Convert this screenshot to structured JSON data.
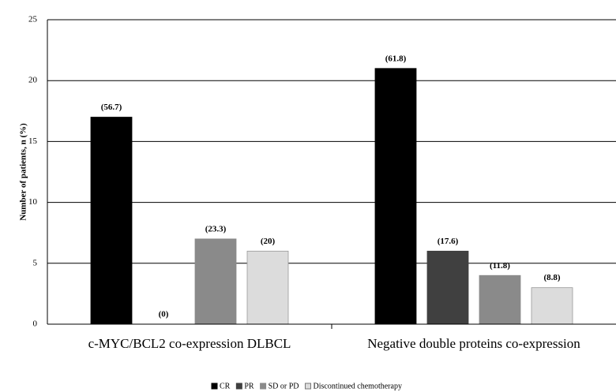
{
  "chart_data": {
    "type": "bar",
    "y_label": "Number of patients, n (%)",
    "categories": [
      "c-MYC/BCL2 co-expression DLBCL",
      "Negative double proteins co-expression"
    ],
    "series": [
      {
        "name": "CR",
        "color": "#000000",
        "values": [
          17,
          21
        ],
        "annotations": [
          "(56.7)",
          "(61.8)"
        ]
      },
      {
        "name": "PR",
        "color": "#404040",
        "values": [
          0,
          6
        ],
        "annotations": [
          "(0)",
          "(17.6)"
        ]
      },
      {
        "name": "SD or PD",
        "color": "#8a8a8a",
        "values": [
          7,
          4
        ],
        "annotations": [
          "(23.3)",
          "(11.8)"
        ]
      },
      {
        "name": "Discontinued chemotherapy",
        "color": "#dcdcdc",
        "values": [
          6,
          3
        ],
        "annotations": [
          "(20)",
          "(8.8)"
        ]
      }
    ],
    "ylim": [
      0,
      25
    ],
    "yticks": [
      0,
      5,
      10,
      15,
      20,
      25
    ],
    "grid": true
  }
}
